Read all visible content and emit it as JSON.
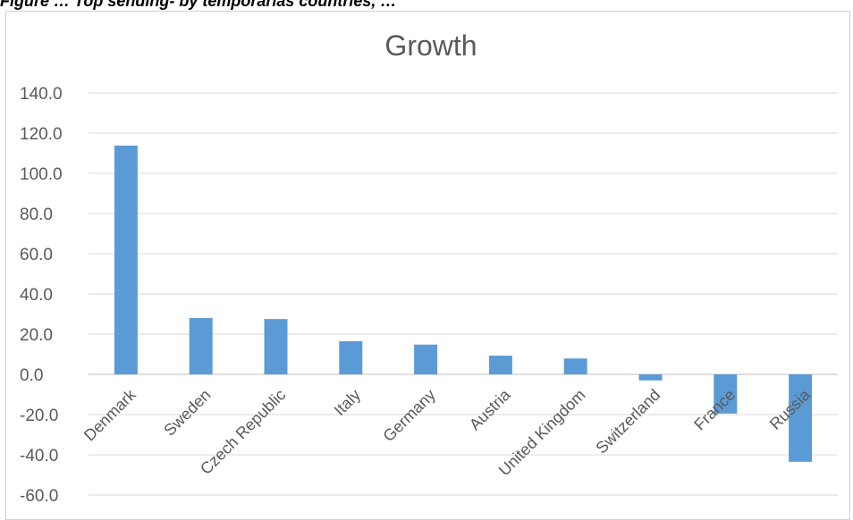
{
  "caption": "Figure … Top sending- by temporarias countries, …",
  "chart_data": {
    "type": "bar",
    "title": "Growth",
    "categories": [
      "Denmark",
      "Sweden",
      "Czech Republic",
      "Italy",
      "Germany",
      "Austria",
      "United Kingdom",
      "Switzerland",
      "France",
      "Russia"
    ],
    "values": [
      113.8,
      28.0,
      27.5,
      16.5,
      14.8,
      9.3,
      7.9,
      -3.0,
      -19.5,
      -43.5
    ],
    "ylim": [
      -60,
      140
    ],
    "yticks": [
      "140.0",
      "120.0",
      "100.0",
      "80.0",
      "60.0",
      "40.0",
      "20.0",
      "0.0",
      "-20.0",
      "-40.0",
      "-60.0"
    ],
    "grid": true,
    "bar_color": "#5B9BD5",
    "xlabel": "",
    "ylabel": ""
  }
}
